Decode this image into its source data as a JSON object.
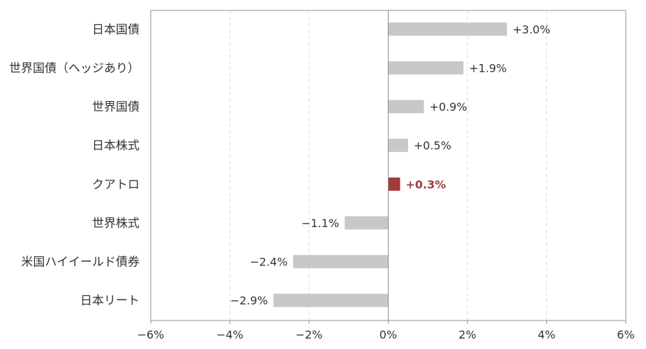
{
  "chart_data": {
    "type": "bar",
    "orientation": "horizontal",
    "categories": [
      "日本国債",
      "世界国債（ヘッジあり）",
      "世界国債",
      "日本株式",
      "クアトロ",
      "世界株式",
      "米国ハイイールド債券",
      "日本リート"
    ],
    "values": [
      3.0,
      1.9,
      0.9,
      0.5,
      0.3,
      -1.1,
      -2.4,
      -2.9
    ],
    "value_labels": [
      "+3.0%",
      "+1.9%",
      "+0.9%",
      "+0.5%",
      "+0.3%",
      "−1.1%",
      "−2.4%",
      "−2.9%"
    ],
    "highlight_index": 4,
    "xlim": [
      -6,
      6
    ],
    "xticks": [
      -6,
      -4,
      -2,
      0,
      2,
      4,
      6
    ],
    "xtick_labels": [
      "−6%",
      "−4%",
      "−2%",
      "0%",
      "2%",
      "4%",
      "6%"
    ],
    "grid": "vertical dashed",
    "title": "",
    "xlabel": "",
    "ylabel": "",
    "colors": {
      "bar": "#c8c8c8",
      "highlight": "#a13c3c",
      "grid": "#d9d9d9",
      "axis": "#8c8c8c"
    }
  }
}
